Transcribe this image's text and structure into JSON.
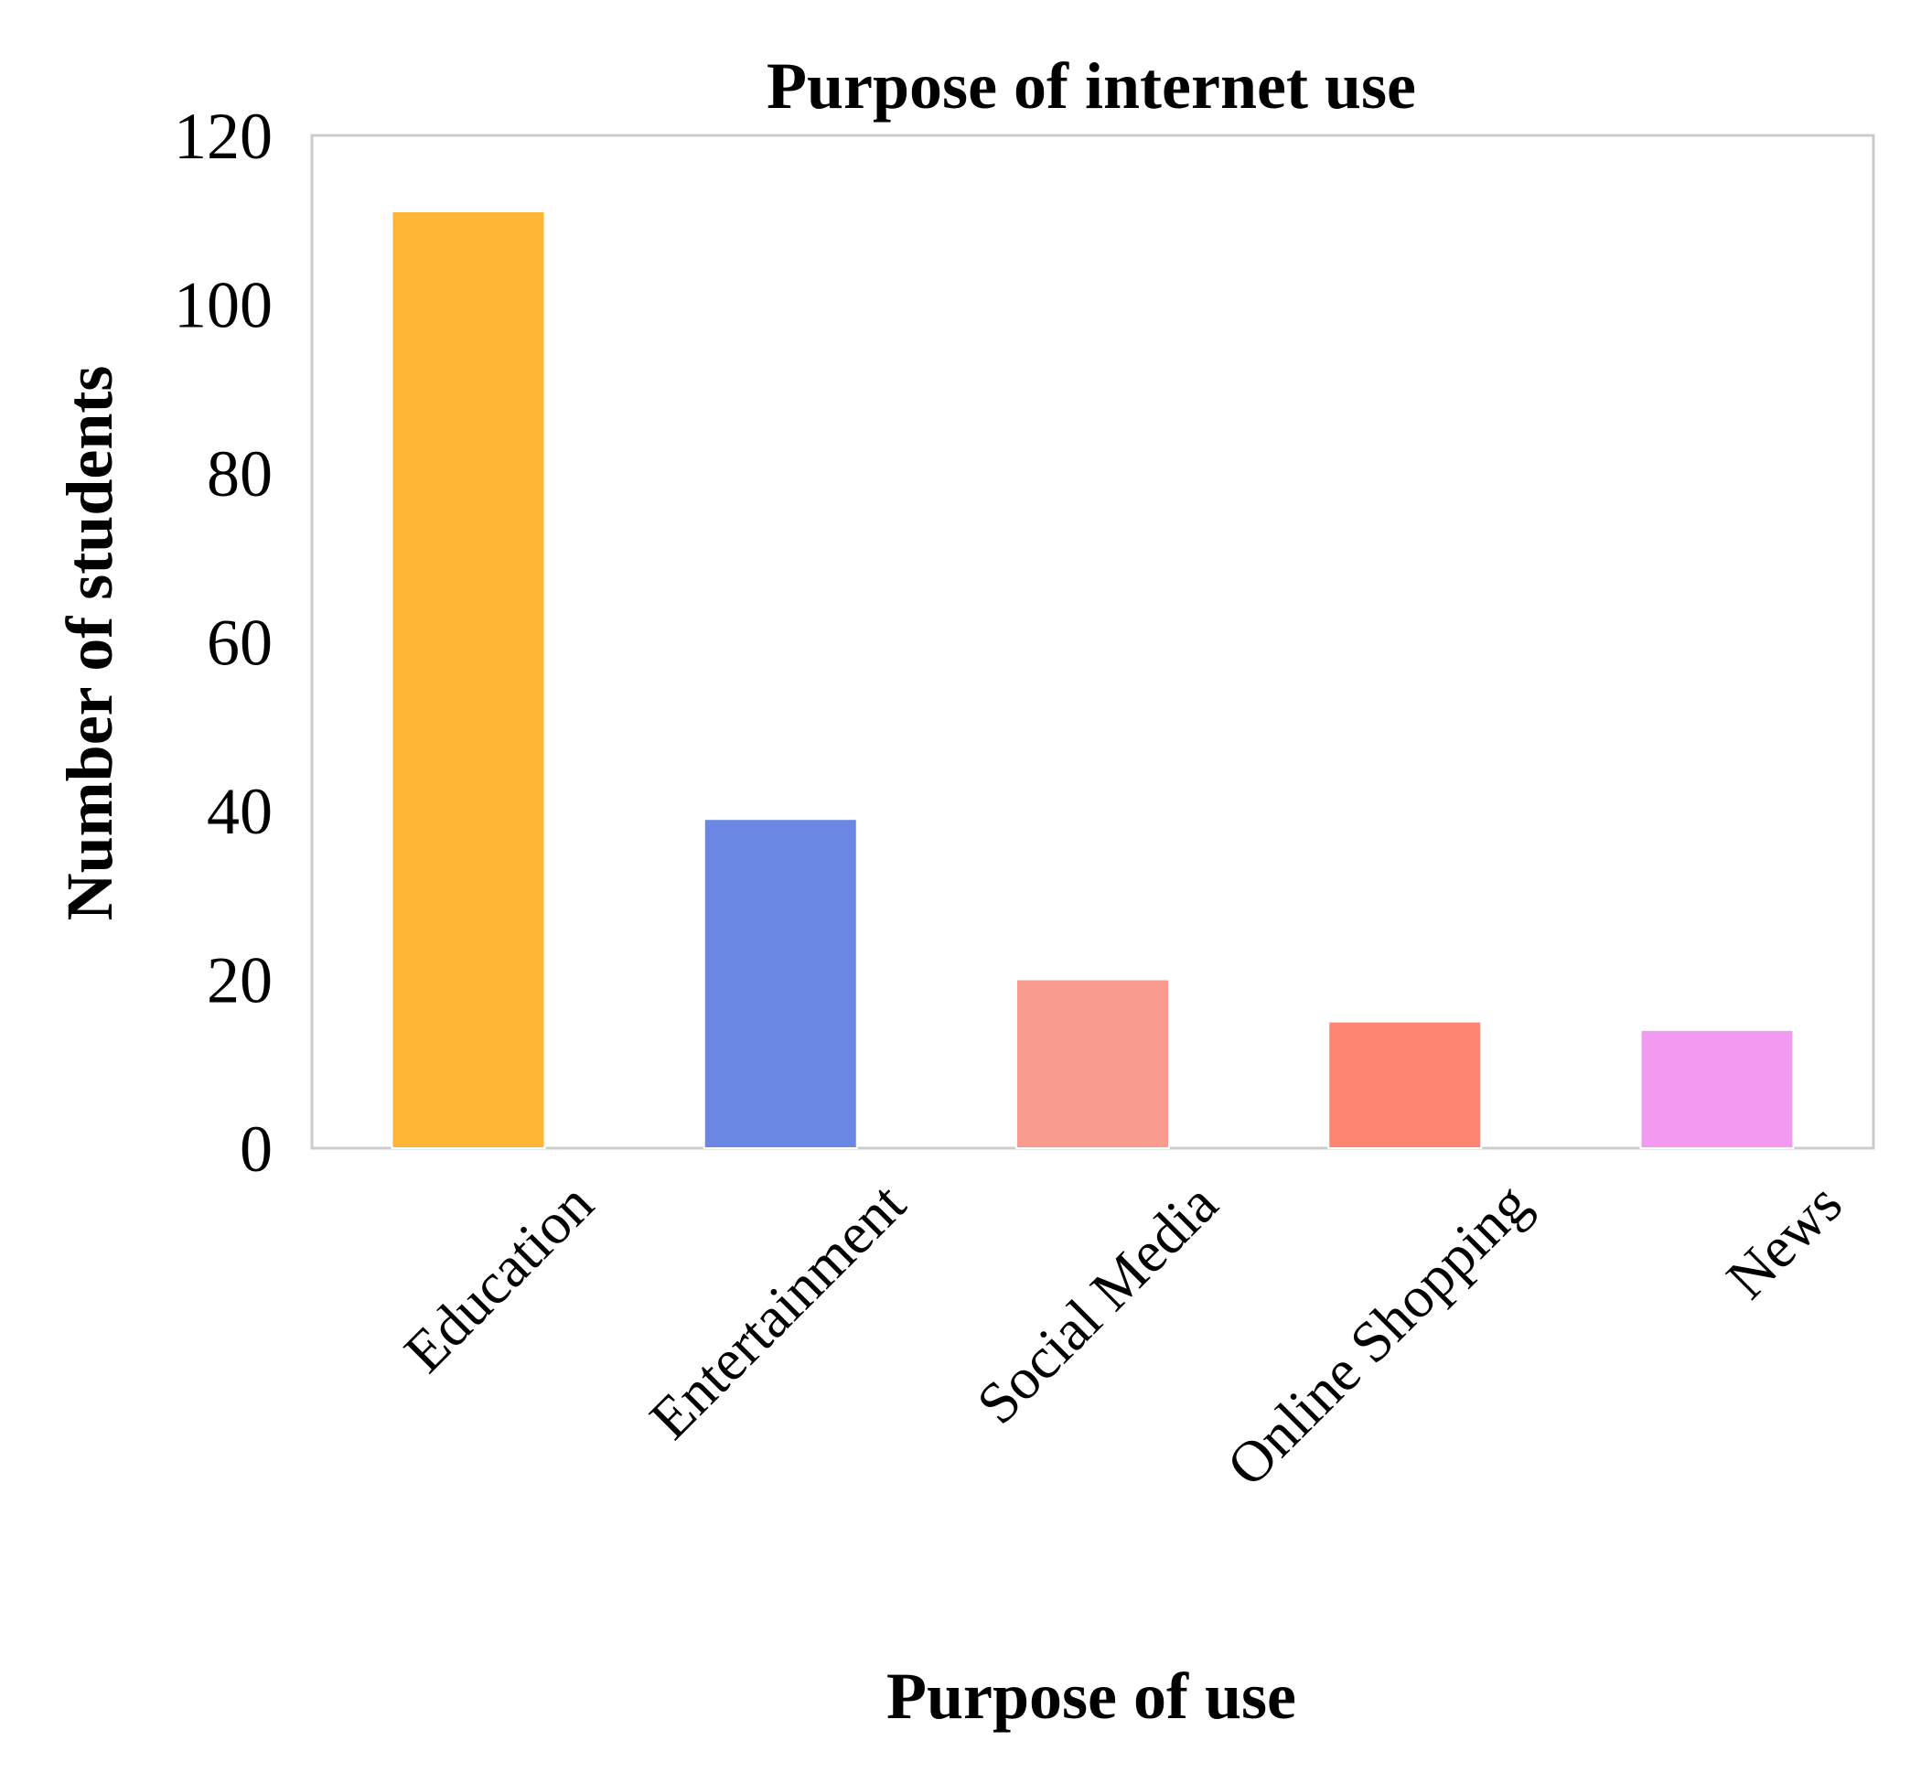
{
  "chart_data": {
    "type": "bar",
    "title": "Purpose of internet use",
    "xlabel": "Purpose of use",
    "ylabel": "Number of students",
    "categories": [
      "Education",
      "Entertainment",
      "Social Media",
      "Online Shopping",
      "News"
    ],
    "values": [
      111,
      39,
      20,
      15,
      14
    ],
    "colors": [
      "#FDB533",
      "#6987E3",
      "#F99C8F",
      "#FE8572",
      "#F19AEF"
    ],
    "ylim": [
      0,
      120
    ],
    "yticks": [
      0,
      20,
      40,
      60,
      80,
      100,
      120
    ],
    "grid": false,
    "legend": "none"
  }
}
